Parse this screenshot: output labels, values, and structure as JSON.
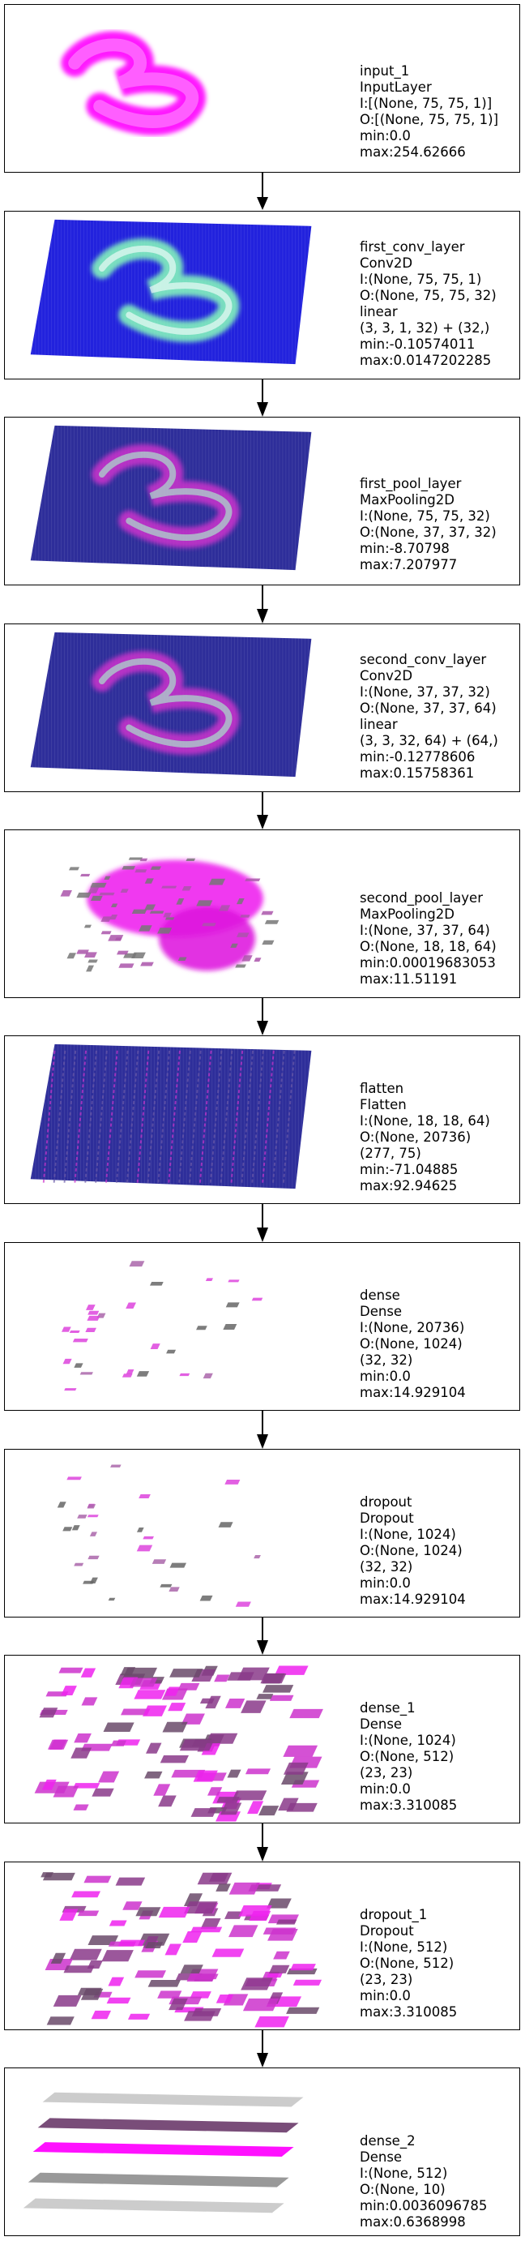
{
  "layers": [
    {
      "name": "input_1",
      "type": "InputLayer",
      "lines": [
        "I:[(None, 75, 75, 1)]",
        "O:[(None, 75, 75, 1)]",
        "min:0.0",
        "max:254.62666"
      ],
      "viz": "input"
    },
    {
      "name": "first_conv_layer",
      "type": "Conv2D",
      "lines": [
        "I:(None, 75, 75, 1)",
        "O:(None, 75, 75, 32)",
        "linear",
        "(3, 3, 1, 32) + (32,)",
        "min:-0.10574011",
        "max:0.0147202285"
      ],
      "viz": "conv1"
    },
    {
      "name": "first_pool_layer",
      "type": "MaxPooling2D",
      "lines": [
        "I:(None, 75, 75, 32)",
        "O:(None, 37, 37, 32)",
        "min:-8.70798",
        "max:7.207977"
      ],
      "viz": "pool1"
    },
    {
      "name": "second_conv_layer",
      "type": "Conv2D",
      "lines": [
        "I:(None, 37, 37, 32)",
        "O:(None, 37, 37, 64)",
        "linear",
        "(3, 3, 32, 64) + (64,)",
        "min:-0.12778606",
        "max:0.15758361"
      ],
      "viz": "conv2"
    },
    {
      "name": "second_pool_layer",
      "type": "MaxPooling2D",
      "lines": [
        "I:(None, 37, 37, 64)",
        "O:(None, 18, 18, 64)",
        "min:0.00019683053",
        "max:11.51191"
      ],
      "viz": "pool2"
    },
    {
      "name": "flatten",
      "type": "Flatten",
      "lines": [
        "I:(None, 18, 18, 64)",
        "O:(None, 20736)",
        "(277, 75)",
        "min:-71.04885",
        "max:92.94625"
      ],
      "viz": "flatten"
    },
    {
      "name": "dense",
      "type": "Dense",
      "lines": [
        "I:(None, 20736)",
        "O:(None, 1024)",
        "(32, 32)",
        "min:0.0",
        "max:14.929104"
      ],
      "viz": "dense"
    },
    {
      "name": "dropout",
      "type": "Dropout",
      "lines": [
        "I:(None, 1024)",
        "O:(None, 1024)",
        "(32, 32)",
        "min:0.0",
        "max:14.929104"
      ],
      "viz": "dense"
    },
    {
      "name": "dense_1",
      "type": "Dense",
      "lines": [
        "I:(None, 1024)",
        "O:(None, 512)",
        "(23, 23)",
        "min:0.0",
        "max:3.310085"
      ],
      "viz": "dense1"
    },
    {
      "name": "dropout_1",
      "type": "Dropout",
      "lines": [
        "I:(None, 512)",
        "O:(None, 512)",
        "(23, 23)",
        "min:0.0",
        "max:3.310085"
      ],
      "viz": "dense1"
    },
    {
      "name": "dense_2",
      "type": "Dense",
      "lines": [
        "I:(None, 512)",
        "O:(None, 10)",
        "min:0.0036096785",
        "max:0.6368998"
      ],
      "viz": "dense2"
    }
  ]
}
